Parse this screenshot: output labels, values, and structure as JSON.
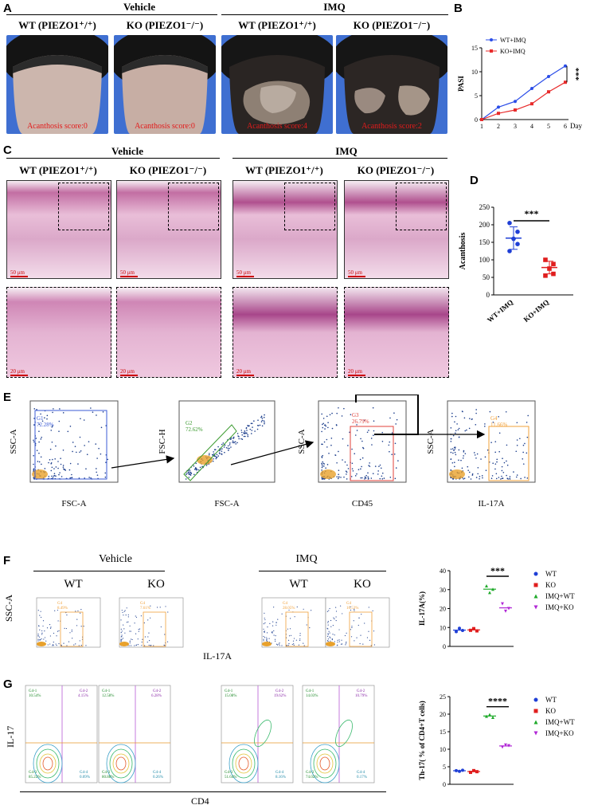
{
  "panels": {
    "a": "A",
    "b": "B",
    "c": "C",
    "d": "D",
    "e": "E",
    "f": "F",
    "g": "G"
  },
  "panelA": {
    "vehicle": "Vehicle",
    "imq": "IMQ",
    "cols": [
      {
        "label": "WT (PIEZO1⁺/⁺)",
        "score": "Acanthosis score:0"
      },
      {
        "label": "KO (PIEZO1⁻/⁻)",
        "score": "Acanthosis score:0"
      },
      {
        "label": "WT (PIEZO1⁺/⁺)",
        "score": "Acanthosis score:4"
      },
      {
        "label": "KO (PIEZO1⁻/⁻)",
        "score": "Acanthosis score:2"
      }
    ]
  },
  "panelB": {
    "ylabel": "PASI",
    "xunit": "Day",
    "sig": "***",
    "legend": [
      "WT+IMQ",
      "KO+IMQ"
    ],
    "colors": [
      "#2b4de8",
      "#e82b2b"
    ]
  },
  "panelC": {
    "vehicle": "Vehicle",
    "imq": "IMQ",
    "cols": [
      "WT (PIEZO1⁺/⁺)",
      "KO (PIEZO1⁻/⁻)",
      "WT (PIEZO1⁺/⁺)",
      "KO (PIEZO1⁻/⁻)"
    ],
    "scale_top": "50 μm",
    "scale_bottom": "20 μm"
  },
  "panelD": {
    "ylabel": "Acanthosis",
    "sig": "***"
  },
  "panelE": {
    "xlabels": [
      "FSC-A",
      "FSC-A",
      "CD45",
      "IL-17A"
    ],
    "ylabels": [
      "SSC-A",
      "FSC-H",
      "SSC-A",
      "SSC-A"
    ],
    "gates": [
      {
        "name": "G1",
        "pct": "72.28%"
      },
      {
        "name": "G2",
        "pct": "72.62%"
      },
      {
        "name": "G3",
        "pct": "26.79%"
      },
      {
        "name": "G4",
        "pct": "11.66%"
      }
    ]
  },
  "panelF": {
    "vehicle": "Vehicle",
    "imq": "IMQ",
    "groups": [
      "WT",
      "KO",
      "WT",
      "KO"
    ],
    "ylabel": "SSC-A",
    "xlabel": "IL-17A",
    "gate_pcts": [
      "8.49%",
      "7.61%",
      "28.05%",
      "16.53%"
    ],
    "gate_name": "G4",
    "chart_ylabel": "IL-17A(%)",
    "sig": "***"
  },
  "panelG": {
    "ylabel": "IL-17",
    "xlabel": "CD4",
    "quadrants": [
      [
        "10.54%",
        "4.15%",
        "85.22%",
        "0.09%"
      ],
      [
        "12.58%",
        "6.28%",
        "80.88%",
        "0.26%"
      ],
      [
        "15.08%",
        "19.62%",
        "51.64%",
        "8.16%"
      ],
      [
        "14.03%",
        "10.79%",
        "74.02%",
        "0.17%"
      ]
    ],
    "qnames": [
      "G4-1",
      "G4-2",
      "G4-3",
      "G4-4"
    ],
    "chart_ylabel": "Th-17( % of CD4+T cells)",
    "sig": "****"
  },
  "legendFG": [
    "WT",
    "KO",
    "IMQ+WT",
    "IMQ+KO"
  ],
  "legendColors": [
    "#1f3fd6",
    "#e01e1e",
    "#1faa2a",
    "#b026d6"
  ],
  "chart_data": [
    {
      "type": "line",
      "ylabel": "PASI",
      "xlabel": "Day",
      "x": [
        1,
        2,
        3,
        4,
        5,
        6
      ],
      "ylim": [
        0,
        15
      ],
      "yticks": [
        0,
        5,
        10,
        15
      ],
      "series": [
        {
          "name": "WT+IMQ",
          "values": [
            0,
            2.6,
            3.8,
            6.5,
            9.0,
            11.2
          ]
        },
        {
          "name": "KO+IMQ",
          "values": [
            0,
            1.3,
            2.0,
            3.3,
            5.8,
            7.8
          ]
        }
      ]
    },
    {
      "type": "scatter",
      "ylabel": "Acanthosis",
      "categories": [
        "WT+IMQ",
        "KO+IMQ"
      ],
      "ylim": [
        0,
        250
      ],
      "yticks": [
        0,
        50,
        100,
        150,
        200,
        250
      ],
      "series": [
        {
          "name": "WT+IMQ",
          "values": [
            205,
            180,
            160,
            145,
            125
          ],
          "mean": 162,
          "sd": 32
        },
        {
          "name": "KO+IMQ",
          "values": [
            100,
            88,
            75,
            60,
            55
          ],
          "mean": 78,
          "sd": 18
        }
      ]
    },
    {
      "type": "scatter",
      "ylabel": "IL-17A(%)",
      "categories": [
        "WT",
        "KO",
        "IMQ+WT",
        "IMQ+KO"
      ],
      "ylim": [
        0,
        40
      ],
      "yticks": [
        0,
        10,
        20,
        30,
        40
      ],
      "series": [
        {
          "name": "WT",
          "values": [
            7.8,
            9.6,
            8.4
          ]
        },
        {
          "name": "KO",
          "values": [
            8.5,
            9.4,
            8.2
          ]
        },
        {
          "name": "IMQ+WT",
          "values": [
            32.0,
            28.5,
            30.2
          ]
        },
        {
          "name": "IMQ+KO",
          "values": [
            22.5,
            18.6,
            20.0
          ]
        }
      ]
    },
    {
      "type": "scatter",
      "ylabel": "Th-17( % of CD4+T cells)",
      "categories": [
        "WT",
        "KO",
        "IMQ+WT",
        "IMQ+KO"
      ],
      "ylim": [
        0,
        25
      ],
      "yticks": [
        0,
        5,
        10,
        15,
        20,
        25
      ],
      "series": [
        {
          "name": "WT",
          "values": [
            3.9,
            3.7,
            4.0
          ]
        },
        {
          "name": "KO",
          "values": [
            3.4,
            3.9,
            3.6
          ]
        },
        {
          "name": "IMQ+WT",
          "values": [
            19.4,
            19.9,
            19.1
          ]
        },
        {
          "name": "IMQ+KO",
          "values": [
            10.6,
            11.2,
            11.0
          ]
        }
      ]
    }
  ]
}
